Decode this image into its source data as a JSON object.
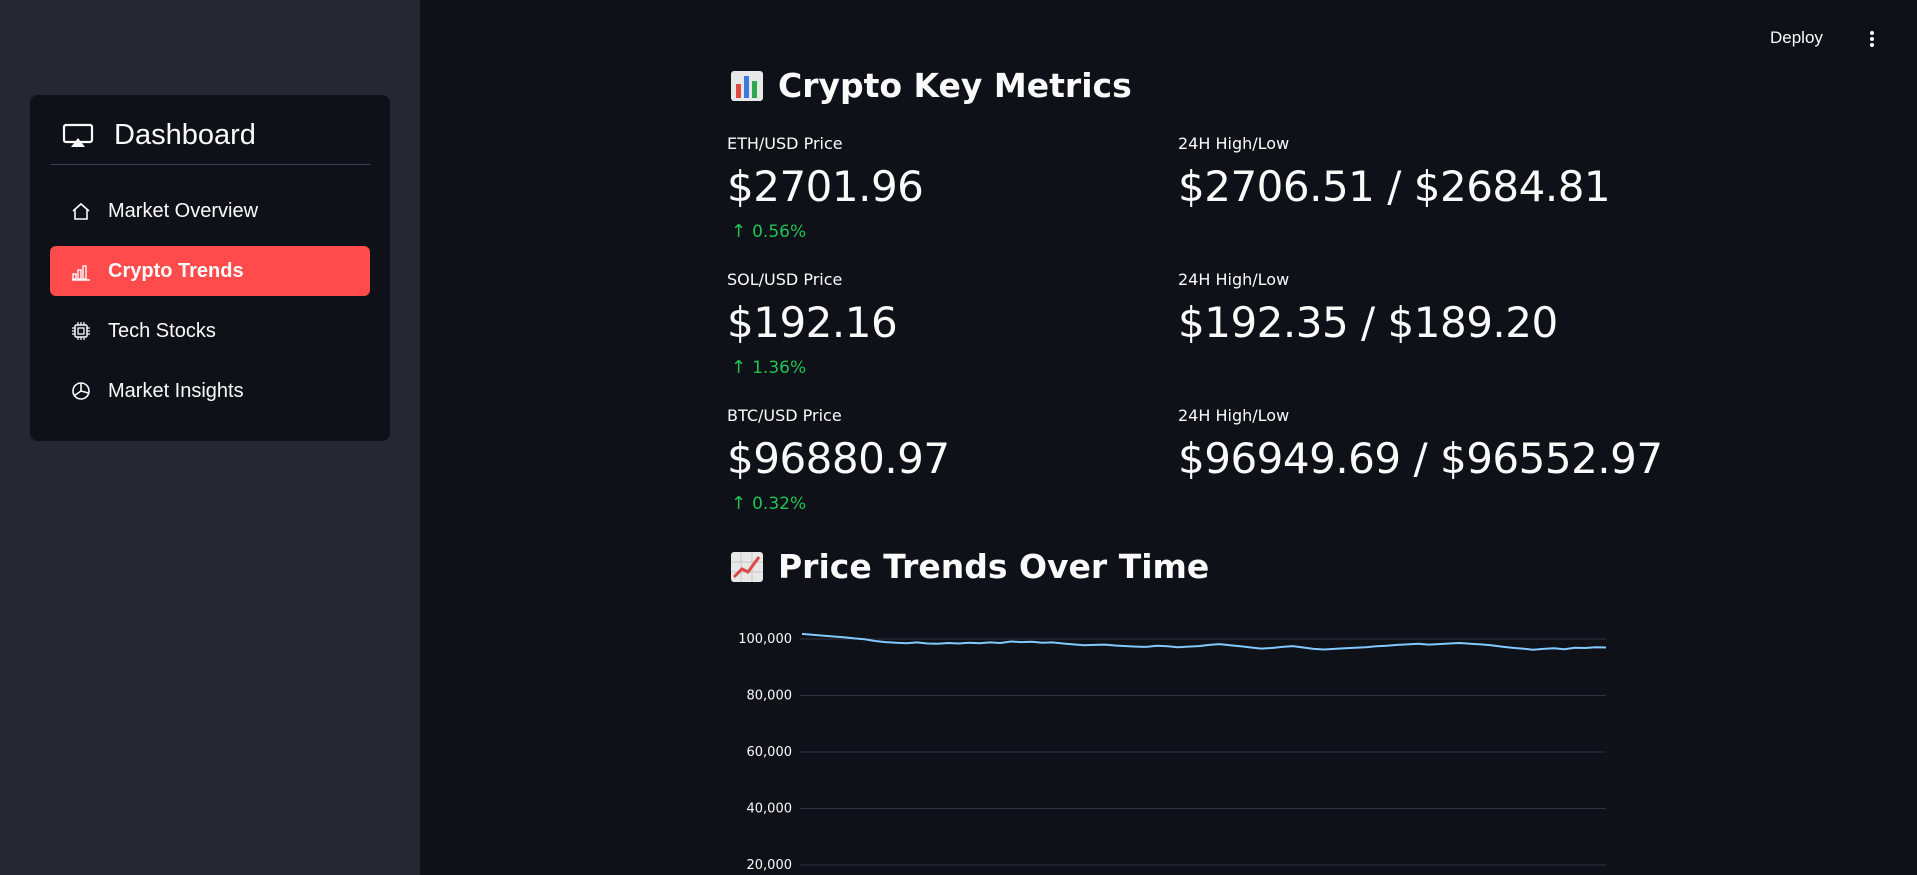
{
  "sidebar": {
    "title": "Dashboard",
    "items": [
      {
        "label": "Market Overview",
        "icon": "house-icon",
        "active": false
      },
      {
        "label": "Crypto Trends",
        "icon": "bar-chart-icon",
        "active": true
      },
      {
        "label": "Tech Stocks",
        "icon": "cpu-icon",
        "active": false
      },
      {
        "label": "Market Insights",
        "icon": "pie-chart-icon",
        "active": false
      }
    ]
  },
  "topbar": {
    "deploy_label": "Deploy",
    "menu_icon": "kebab-menu-icon"
  },
  "colors": {
    "accent": "#ff4b4b",
    "positive": "#21c354",
    "background": "#0e1117",
    "sidebar": "#262730",
    "line": "#83c9ff"
  },
  "metrics_section": {
    "title": "Crypto Key Metrics",
    "rows": [
      {
        "label": "ETH/USD Price",
        "value": "$2701.96",
        "delta": "0.56%",
        "hl_label": "24H High/Low",
        "hl_value": "$2706.51 / $2684.81"
      },
      {
        "label": "SOL/USD Price",
        "value": "$192.16",
        "delta": "1.36%",
        "hl_label": "24H High/Low",
        "hl_value": "$192.35 / $189.20"
      },
      {
        "label": "BTC/USD Price",
        "value": "$96880.97",
        "delta": "0.32%",
        "hl_label": "24H High/Low",
        "hl_value": "$96949.69 / $96552.97"
      }
    ]
  },
  "trends_section": {
    "title": "Price Trends Over Time"
  },
  "chart_data": {
    "type": "line",
    "title": "",
    "xlabel": "",
    "ylabel": "",
    "ylim": [
      20000,
      100000
    ],
    "yticks": [
      "100,000",
      "80,000",
      "60,000",
      "40,000",
      "20,000"
    ],
    "grid": true,
    "series": [
      {
        "values": [
          101800,
          101500,
          101200,
          100900,
          100600,
          100200,
          99900,
          99300,
          98900,
          98700,
          98500,
          98800,
          98400,
          98300,
          98600,
          98400,
          98700,
          98500,
          98800,
          98600,
          99100,
          98900,
          99000,
          98700,
          98800,
          98400,
          98100,
          97800,
          97900,
          98000,
          97700,
          97500,
          97300,
          97200,
          97600,
          97400,
          97100,
          97300,
          97500,
          97900,
          98200,
          97800,
          97400,
          97000,
          96600,
          96800,
          97200,
          97500,
          97000,
          96500,
          96300,
          96500,
          96700,
          96900,
          97100,
          97400,
          97600,
          97900,
          98100,
          98300,
          98000,
          98200,
          98400,
          98600,
          98300,
          98100,
          97800,
          97300,
          96900,
          96600,
          96200,
          96500,
          96700,
          96400,
          96900,
          96800,
          97100,
          97000
        ]
      }
    ]
  }
}
